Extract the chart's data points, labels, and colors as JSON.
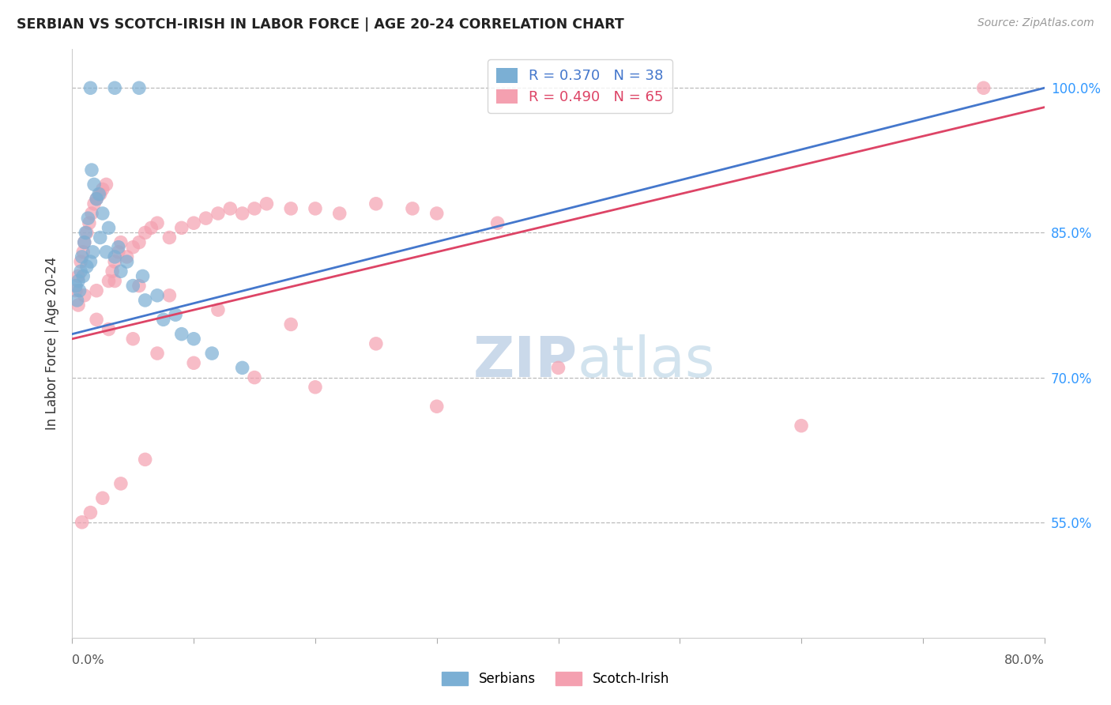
{
  "title": "SERBIAN VS SCOTCH-IRISH IN LABOR FORCE | AGE 20-24 CORRELATION CHART",
  "source": "Source: ZipAtlas.com",
  "ylabel": "In Labor Force | Age 20-24",
  "r_serbian": 0.37,
  "n_serbian": 38,
  "r_scotch": 0.49,
  "n_scotch": 65,
  "serbian_color": "#7BAFD4",
  "scotch_color": "#F4A0B0",
  "line_serbian_color": "#4477CC",
  "line_scotch_color": "#DD4466",
  "watermark_color": "#D0E4F5",
  "background_color": "#FFFFFF",
  "xmin": 0.0,
  "xmax": 80.0,
  "ymin": 43.0,
  "ymax": 104.0,
  "yticks": [
    55.0,
    70.0,
    85.0,
    100.0
  ],
  "ytick_labels": [
    "55.0%",
    "70.0%",
    "85.0%",
    "100.0%"
  ],
  "serbian_x": [
    1.5,
    3.5,
    5.5,
    0.3,
    0.5,
    0.7,
    0.8,
    1.0,
    1.1,
    1.3,
    1.6,
    1.8,
    2.0,
    2.2,
    2.5,
    3.0,
    3.8,
    4.5,
    5.8,
    7.0,
    8.5,
    10.0,
    11.5,
    14.0,
    0.4,
    0.6,
    0.9,
    1.2,
    1.5,
    1.7,
    2.3,
    2.8,
    3.5,
    4.0,
    5.0,
    6.0,
    7.5,
    9.0
  ],
  "serbian_y": [
    100.0,
    100.0,
    100.0,
    79.5,
    80.0,
    81.0,
    82.5,
    84.0,
    85.0,
    86.5,
    91.5,
    90.0,
    88.5,
    89.0,
    87.0,
    85.5,
    83.5,
    82.0,
    80.5,
    78.5,
    76.5,
    74.0,
    72.5,
    71.0,
    78.0,
    79.0,
    80.5,
    81.5,
    82.0,
    83.0,
    84.5,
    83.0,
    82.5,
    81.0,
    79.5,
    78.0,
    76.0,
    74.5
  ],
  "scotch_x": [
    0.3,
    0.5,
    0.7,
    0.9,
    1.0,
    1.2,
    1.4,
    1.6,
    1.8,
    2.0,
    2.3,
    2.5,
    2.8,
    3.0,
    3.3,
    3.5,
    3.8,
    4.0,
    4.5,
    5.0,
    5.5,
    6.0,
    6.5,
    7.0,
    8.0,
    9.0,
    10.0,
    11.0,
    12.0,
    13.0,
    14.0,
    15.0,
    16.0,
    18.0,
    20.0,
    22.0,
    25.0,
    28.0,
    30.0,
    35.0,
    2.0,
    3.0,
    5.0,
    7.0,
    10.0,
    15.0,
    20.0,
    30.0,
    0.5,
    1.0,
    2.0,
    3.5,
    5.5,
    8.0,
    12.0,
    18.0,
    25.0,
    40.0,
    60.0,
    75.0,
    0.8,
    1.5,
    2.5,
    4.0,
    6.0
  ],
  "scotch_y": [
    79.0,
    80.5,
    82.0,
    83.0,
    84.0,
    85.0,
    86.0,
    87.0,
    88.0,
    88.5,
    89.0,
    89.5,
    90.0,
    80.0,
    81.0,
    82.0,
    83.0,
    84.0,
    82.5,
    83.5,
    84.0,
    85.0,
    85.5,
    86.0,
    84.5,
    85.5,
    86.0,
    86.5,
    87.0,
    87.5,
    87.0,
    87.5,
    88.0,
    87.5,
    87.5,
    87.0,
    88.0,
    87.5,
    87.0,
    86.0,
    76.0,
    75.0,
    74.0,
    72.5,
    71.5,
    70.0,
    69.0,
    67.0,
    77.5,
    78.5,
    79.0,
    80.0,
    79.5,
    78.5,
    77.0,
    75.5,
    73.5,
    71.0,
    65.0,
    100.0,
    55.0,
    56.0,
    57.5,
    59.0,
    61.5
  ],
  "serbian_trend_x0": 0.0,
  "serbian_trend_y0": 74.5,
  "serbian_trend_x1": 80.0,
  "serbian_trend_y1": 100.0,
  "scotch_trend_x0": 0.0,
  "scotch_trend_y0": 74.0,
  "scotch_trend_x1": 80.0,
  "scotch_trend_y1": 98.0
}
